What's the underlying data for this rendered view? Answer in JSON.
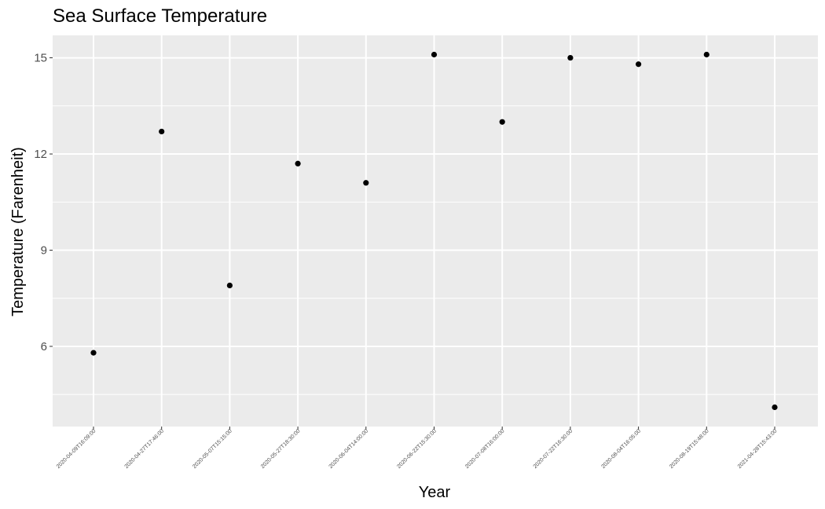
{
  "chart_data": {
    "type": "scatter",
    "title": "Sea Surface Temperature",
    "xlabel": "Year",
    "ylabel": "Temperature (Farenheit)",
    "x": [
      "2020-04-09T16:09:00",
      "2020-04-27T17:46:00",
      "2020-05-07T15:15:00",
      "2020-05-27T18:30:00",
      "2020-06-04T14:00:00",
      "2020-06-22T15:30:00",
      "2020-07-08T16:00:00",
      "2020-07-22T16:30:00",
      "2020-08-04T16:05:00",
      "2020-08-19T15:48:00",
      "2021-04-28T15:43:00"
    ],
    "y": [
      5.8,
      12.7,
      7.9,
      11.7,
      11.1,
      15.1,
      13.0,
      15.0,
      14.8,
      15.1,
      4.1
    ],
    "y_ticks": [
      6,
      9,
      12,
      15
    ],
    "ylim": [
      3.5,
      15.7
    ],
    "x_scale": "categorical",
    "grid": true,
    "colors": {
      "panel": "#ebebeb",
      "grid": "#ffffff",
      "point": "#000000",
      "tick_text": "#4d4d4d"
    }
  }
}
